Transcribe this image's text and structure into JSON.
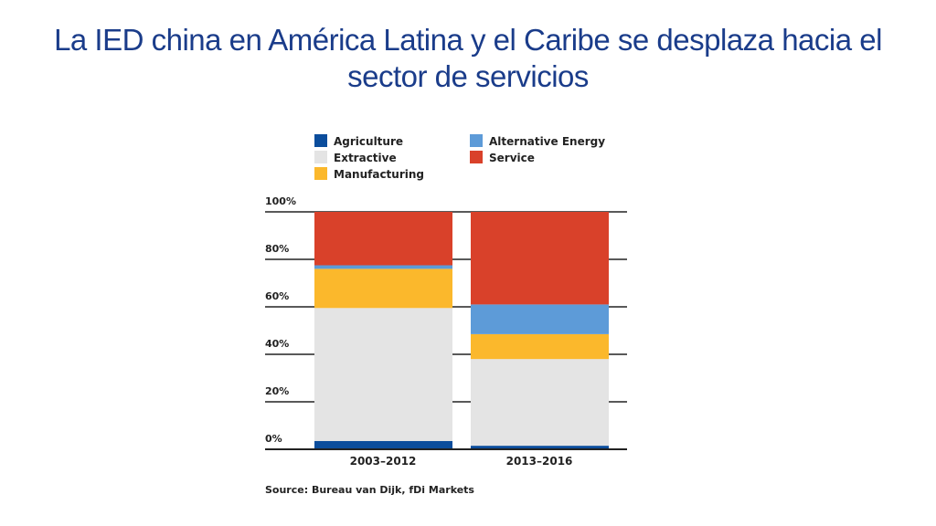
{
  "slide": {
    "title_line1": "La IED china en América Latina y el Caribe se desplaza hacia el",
    "title_line2": "sector de servicios"
  },
  "chart_data": {
    "type": "bar",
    "stacked": true,
    "categories": [
      "2003–2012",
      "2013–2016"
    ],
    "series": [
      {
        "name": "Agriculture",
        "color": "#0b4d9c",
        "values": [
          3.5,
          1.5
        ]
      },
      {
        "name": "Extractive",
        "color": "#e4e4e4",
        "values": [
          56,
          36.5
        ]
      },
      {
        "name": "Manufacturing",
        "color": "#fbb82c",
        "values": [
          16.5,
          10.5
        ]
      },
      {
        "name": "Alternative Energy",
        "color": "#5d9bd8",
        "values": [
          1.5,
          12.5
        ]
      },
      {
        "name": "Service",
        "color": "#d9412a",
        "values": [
          22.5,
          39
        ]
      }
    ],
    "yticks": [
      "0%",
      "20%",
      "40%",
      "60%",
      "80%",
      "100%"
    ],
    "ylim": [
      0,
      100
    ],
    "legend": [
      "Agriculture",
      "Extractive",
      "Manufacturing",
      "Alternative Energy",
      "Service"
    ],
    "source": "Source: Bureau van Dijk, fDi Markets"
  }
}
